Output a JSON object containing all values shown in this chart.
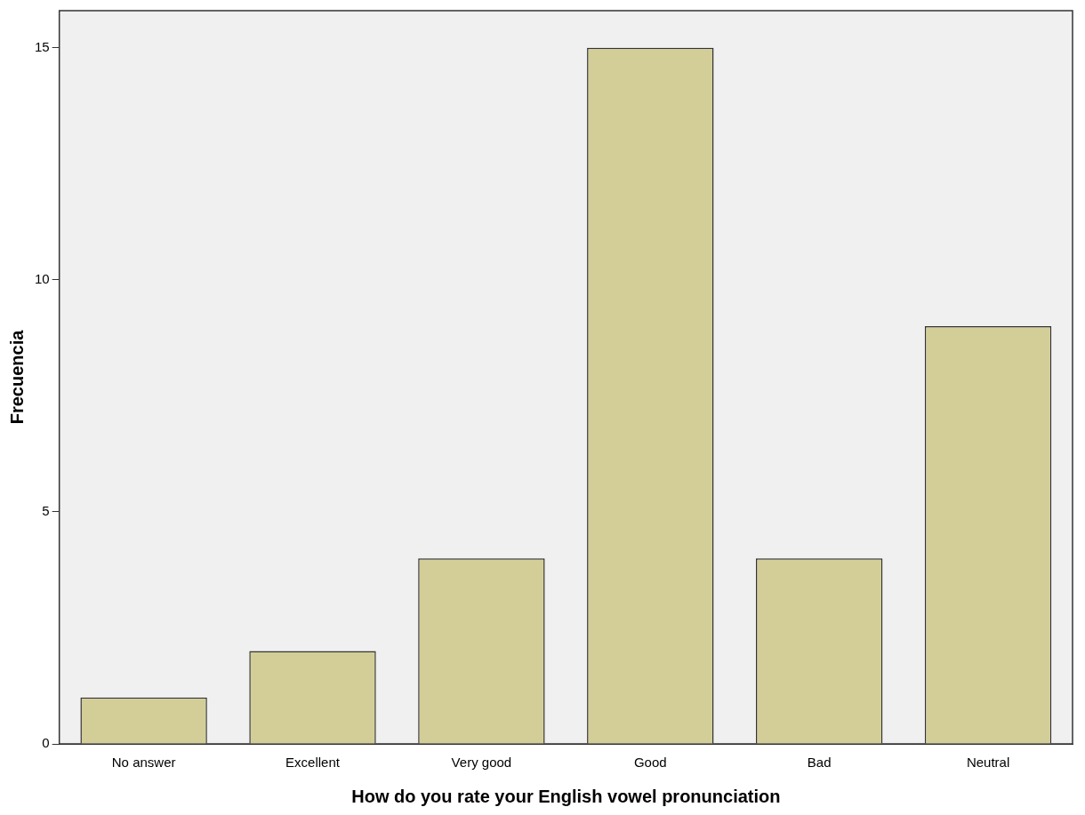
{
  "chart_data": {
    "type": "bar",
    "xlabel": "How do you rate your English vowel pronunciation",
    "ylabel": "Frecuencia",
    "categories": [
      "No answer",
      "Excellent",
      "Very good",
      "Good",
      "Bad",
      "Neutral"
    ],
    "values": [
      1,
      2,
      4,
      15,
      4,
      9
    ],
    "color": "#d3ce97",
    "ylim": [
      0,
      15.8
    ],
    "yticks": [
      0,
      5,
      10,
      15
    ],
    "grid": false,
    "legend": false
  }
}
